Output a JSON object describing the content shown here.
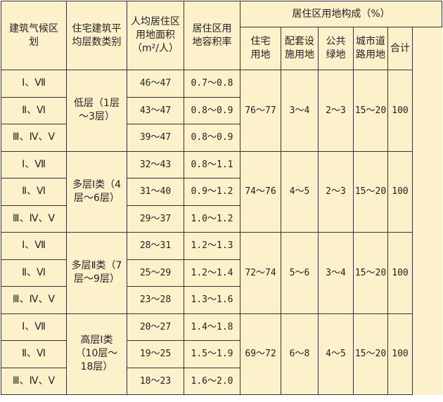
{
  "headers": {
    "climate_zone": "建筑气候区划",
    "floor_category": "住宅建筑平均层数类别",
    "land_per_capita": "人均居住区用地面积（m²/人）",
    "far": "居住区用地容积率",
    "composition": "居住区用地构成（%）",
    "residential": "住宅用地",
    "facilities": "配套设施用地",
    "green": "公共绿地",
    "roads": "城市道路用地",
    "total": "合计"
  },
  "groups": [
    {
      "category": "低层（1层～3层）",
      "residential": "76～77",
      "facilities": "3～4",
      "green": "2～3",
      "roads": "15～20",
      "total": "100",
      "rows": [
        {
          "zone": "Ⅰ、Ⅶ",
          "area": "46～47",
          "far": "0.7～0.8"
        },
        {
          "zone": "Ⅱ、Ⅵ",
          "area": "43～47",
          "far": "0.8～0.9"
        },
        {
          "zone": "Ⅲ、Ⅳ、Ⅴ",
          "area": "39～47",
          "far": "0.8～0.9"
        }
      ]
    },
    {
      "category": "多层Ⅰ类（4层～6层）",
      "residential": "74～76",
      "facilities": "4～5",
      "green": "2～3",
      "roads": "15～20",
      "total": "100",
      "rows": [
        {
          "zone": "Ⅰ、Ⅶ",
          "area": "32～43",
          "far": "0.8～1.1"
        },
        {
          "zone": "Ⅱ、Ⅵ",
          "area": "31～40",
          "far": "0.9～1.2"
        },
        {
          "zone": "Ⅲ、Ⅳ、Ⅴ",
          "area": "29～37",
          "far": "1.0～1.2"
        }
      ]
    },
    {
      "category": "多层Ⅱ类（7层～9层）",
      "residential": "72～74",
      "facilities": "5～6",
      "green": "3～4",
      "roads": "15～20",
      "total": "100",
      "rows": [
        {
          "zone": "Ⅰ、Ⅶ",
          "area": "28～31",
          "far": "1.2～1.3"
        },
        {
          "zone": "Ⅱ、Ⅵ",
          "area": "25～29",
          "far": "1.2～1.4"
        },
        {
          "zone": "Ⅲ、Ⅳ、Ⅴ",
          "area": "23～28",
          "far": "1.3～1.6"
        }
      ]
    },
    {
      "category": "高层Ⅰ类（10层～18层）",
      "residential": "69～72",
      "facilities": "6～8",
      "green": "4～5",
      "roads": "15～20",
      "total": "100",
      "rows": [
        {
          "zone": "Ⅰ、Ⅶ",
          "area": "20～27",
          "far": "1.4～1.8"
        },
        {
          "zone": "Ⅱ、Ⅵ",
          "area": "19～25",
          "far": "1.5～1.9"
        },
        {
          "zone": "Ⅲ、Ⅳ、Ⅴ",
          "area": "18～23",
          "far": "1.6～2.0"
        }
      ]
    }
  ]
}
